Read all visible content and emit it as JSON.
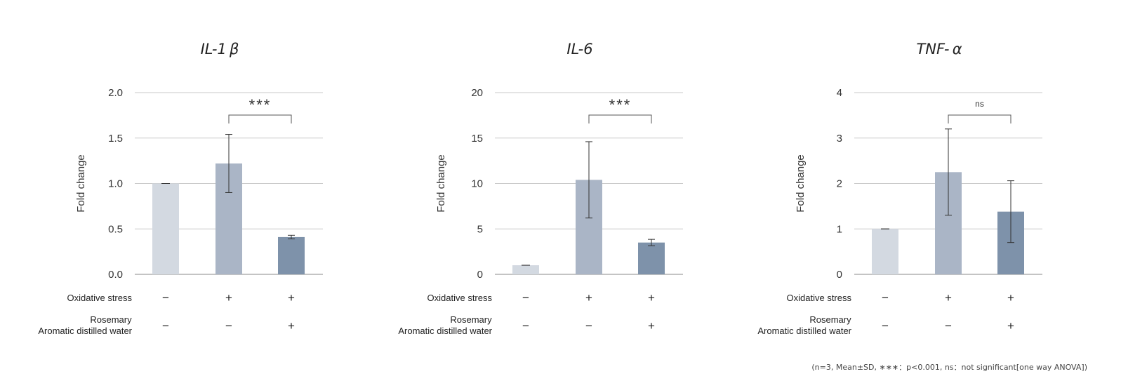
{
  "chart_data": [
    {
      "type": "bar",
      "title": "IL-1 β",
      "ylabel": "Fold change",
      "ylim": [
        0,
        2
      ],
      "yticks": [
        "0.0",
        "0.5",
        "1.0",
        "1.5",
        "2.0"
      ],
      "yticks_values": [
        0,
        0.5,
        1.0,
        1.5,
        2.0
      ],
      "values": [
        1.0,
        1.22,
        0.41
      ],
      "errors": [
        0.0,
        0.32,
        0.02
      ],
      "bar_colors": [
        "#d3d9e1",
        "#aab5c6",
        "#7e92aa"
      ],
      "significance": {
        "from": 1,
        "to": 2,
        "label": "***"
      },
      "row_labels": [
        "Oxidative stress",
        "Rosemary",
        "Aromatic distilled water"
      ],
      "oxidative_stress": [
        "−",
        "+",
        "+"
      ],
      "rosemary": [
        "−",
        "−",
        "+"
      ],
      "grid": true
    },
    {
      "type": "bar",
      "title": "IL-6",
      "ylabel": "Fold change",
      "ylim": [
        0,
        20
      ],
      "yticks": [
        "0",
        "5",
        "10",
        "15",
        "20"
      ],
      "yticks_values": [
        0,
        5,
        10,
        15,
        20
      ],
      "values": [
        1.0,
        10.4,
        3.5
      ],
      "errors": [
        0.0,
        4.2,
        0.35
      ],
      "bar_colors": [
        "#d3d9e1",
        "#aab5c6",
        "#7e92aa"
      ],
      "significance": {
        "from": 1,
        "to": 2,
        "label": "***"
      },
      "row_labels": [
        "Oxidative stress",
        "Rosemary",
        "Aromatic distilled water"
      ],
      "oxidative_stress": [
        "−",
        "+",
        "+"
      ],
      "rosemary": [
        "−",
        "−",
        "+"
      ],
      "grid": true
    },
    {
      "type": "bar",
      "title": "TNF- α",
      "ylabel": "Fold change",
      "ylim": [
        0,
        4
      ],
      "yticks": [
        "0",
        "1",
        "2",
        "3",
        "4"
      ],
      "yticks_values": [
        0,
        1,
        2,
        3,
        4
      ],
      "values": [
        1.0,
        2.25,
        1.38
      ],
      "errors": [
        0.0,
        0.95,
        0.68
      ],
      "bar_colors": [
        "#d3d9e1",
        "#aab5c6",
        "#7e92aa"
      ],
      "significance": {
        "from": 1,
        "to": 2,
        "label": "ns"
      },
      "row_labels": [
        "Oxidative stress",
        "Rosemary",
        "Aromatic distilled water"
      ],
      "oxidative_stress": [
        "−",
        "+",
        "+"
      ],
      "rosemary": [
        "−",
        "−",
        "+"
      ],
      "grid": true
    }
  ],
  "footnote": "(n=3, Mean±SD, ∗∗∗：p<0.001, ns：not significant[one way ANOVA])"
}
